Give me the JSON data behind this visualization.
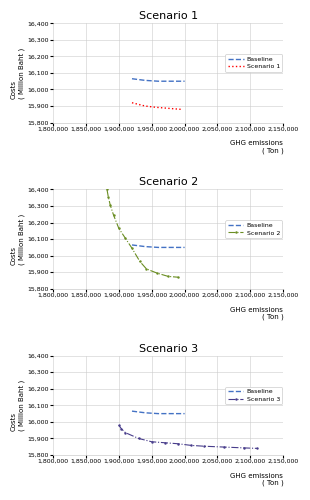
{
  "title_fontsize": 8,
  "label_fontsize": 5,
  "tick_fontsize": 4.5,
  "legend_fontsize": 4.5,
  "ylim": [
    15800,
    16400
  ],
  "xlim": [
    1800000,
    2150000
  ],
  "yticks": [
    15800,
    15900,
    16000,
    16100,
    16200,
    16300,
    16400
  ],
  "xticks": [
    1800000,
    1850000,
    1900000,
    1950000,
    2000000,
    2050000,
    2100000,
    2150000
  ],
  "ylabel": "Costs\n( Million Baht )",
  "xlabel": "GHG emissions\n( Ton )",
  "baseline1": {
    "x": [
      1920000,
      1940000,
      1960000,
      1980000,
      2000000
    ],
    "y": [
      16065,
      16055,
      16050,
      16050,
      16050
    ],
    "color": "#4472C4",
    "linestyle": "--",
    "linewidth": 1.0,
    "label": "Baseline"
  },
  "scenario1": {
    "x": [
      1920000,
      1940000,
      1955000,
      1970000,
      1985000,
      1995000
    ],
    "y": [
      15920,
      15900,
      15893,
      15888,
      15883,
      15880
    ],
    "color": "#FF0000",
    "linestyle": ":",
    "linewidth": 1.0,
    "label": "Scenario 1"
  },
  "baseline2": {
    "x": [
      1920000,
      1940000,
      1960000,
      1980000,
      2000000
    ],
    "y": [
      16065,
      16055,
      16050,
      16050,
      16050
    ],
    "color": "#4472C4",
    "linestyle": "--",
    "linewidth": 1.0,
    "label": "Baseline"
  },
  "scenario2": {
    "x": [
      1882000,
      1884000,
      1887000,
      1892000,
      1900000,
      1910000,
      1920000,
      1932000,
      1942000,
      1958000,
      1975000,
      1990000
    ],
    "y": [
      16400,
      16355,
      16305,
      16245,
      16165,
      16105,
      16045,
      15965,
      15920,
      15895,
      15875,
      15870
    ],
    "color": "#6B8E23",
    "linestyle": "-.",
    "linewidth": 0.8,
    "marker": ".",
    "markersize": 1.5,
    "label": "Scenario 2"
  },
  "baseline3": {
    "x": [
      1920000,
      1940000,
      1960000,
      1980000,
      2000000
    ],
    "y": [
      16065,
      16055,
      16050,
      16050,
      16050
    ],
    "color": "#4472C4",
    "linestyle": "--",
    "linewidth": 1.0,
    "label": "Baseline"
  },
  "scenario3": {
    "x": [
      1900000,
      1904000,
      1910000,
      1930000,
      1950000,
      1970000,
      1990000,
      2010000,
      2030000,
      2060000,
      2090000,
      2110000
    ],
    "y": [
      15980,
      15958,
      15935,
      15900,
      15880,
      15874,
      15868,
      15858,
      15853,
      15848,
      15843,
      15840
    ],
    "color": "#483D8B",
    "linestyle": "-.",
    "linewidth": 0.8,
    "marker": ".",
    "markersize": 1.5,
    "label": "Scenario 3"
  }
}
